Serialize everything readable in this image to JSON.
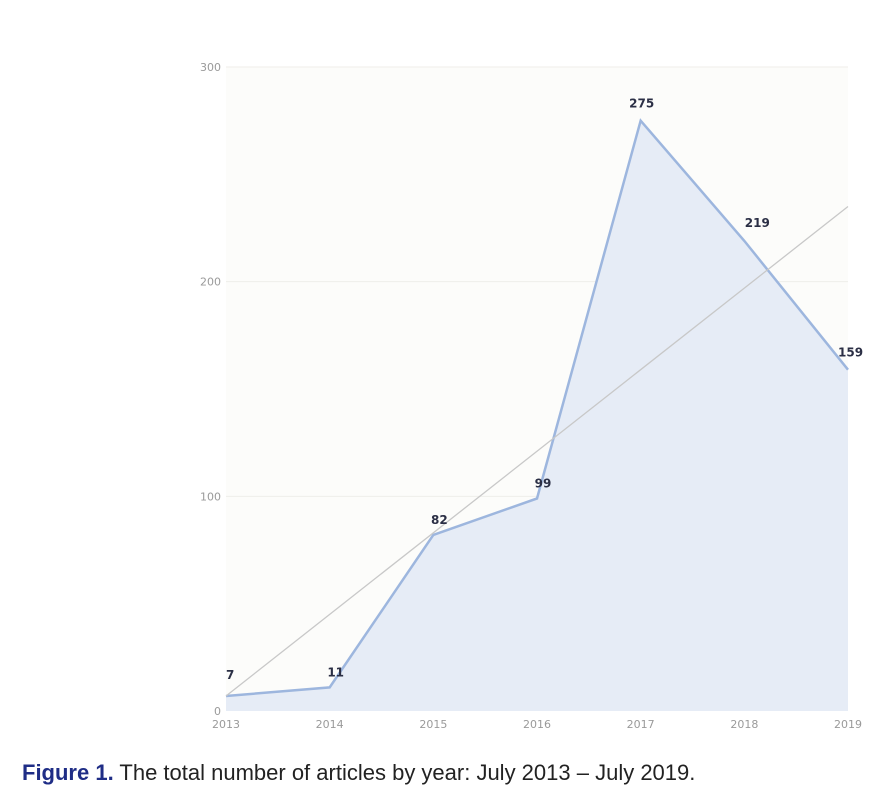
{
  "chart_data": {
    "type": "area",
    "categories": [
      "2013",
      "2014",
      "2015",
      "2016",
      "2017",
      "2018",
      "2019"
    ],
    "series": [
      {
        "values": [
          7,
          11,
          82,
          99,
          275,
          219,
          159
        ]
      }
    ],
    "data_labels": [
      "7",
      "11",
      "82",
      "99",
      "275",
      "219",
      "159"
    ],
    "trendline": {
      "start": 7,
      "end": 235
    },
    "yticks": [
      0,
      100,
      200,
      300
    ],
    "ylim": [
      0,
      300
    ],
    "grid": true,
    "legend": "none",
    "colors": {
      "area_fill": "#e6ecf6",
      "line": "#9db6de",
      "trend": "#c8c8c8",
      "plot_bg": "#fcfcfa",
      "grid": "#efeeea"
    }
  },
  "caption": {
    "label": "Figure 1.",
    "text": " The total number of articles by year: July 2013 – July 2019."
  }
}
